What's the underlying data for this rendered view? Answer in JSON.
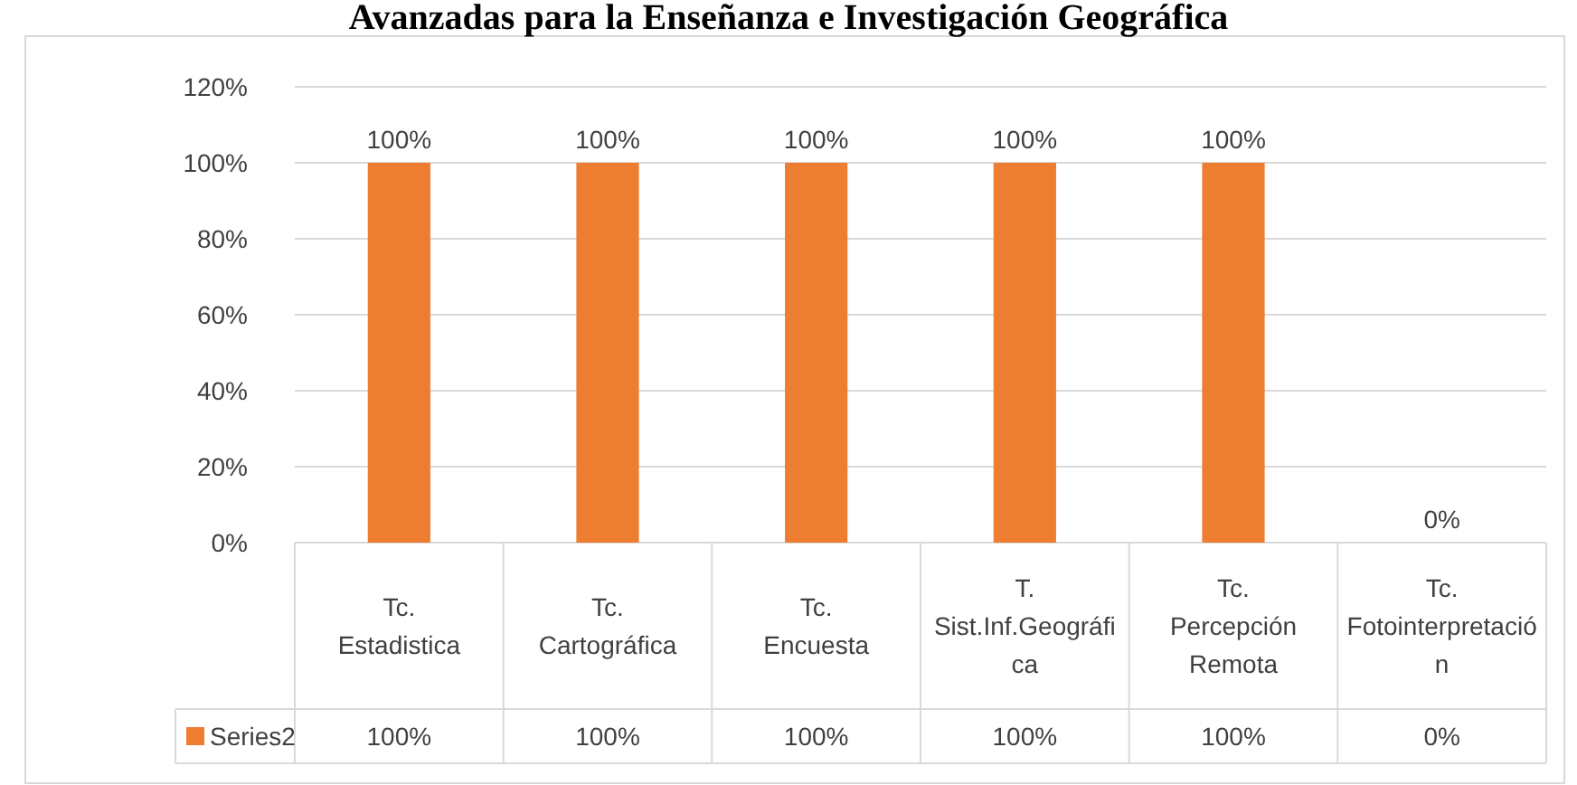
{
  "chart_data": {
    "type": "bar",
    "title": "Avanzadas para la Enseñanza e Investigación Geográfica",
    "categories": [
      "Tc. Estadistica",
      "Tc. Cartográfica",
      "Tc. Encuesta",
      "T. Sist.Inf.Geográfica",
      "Tc. Percepción Remota",
      "Tc. Fotointerpretación"
    ],
    "series": [
      {
        "name": "Series2",
        "color": "#ed7d31",
        "values": [
          100,
          100,
          100,
          100,
          100,
          0
        ],
        "value_labels": [
          "100%",
          "100%",
          "100%",
          "100%",
          "100%",
          "0%"
        ]
      }
    ],
    "ylim": [
      0,
      120
    ],
    "yticks": [
      {
        "value": 0,
        "label": "0%"
      },
      {
        "value": 20,
        "label": "20%"
      },
      {
        "value": 40,
        "label": "40%"
      },
      {
        "value": 60,
        "label": "60%"
      },
      {
        "value": 80,
        "label": "80%"
      },
      {
        "value": 100,
        "label": "100%"
      },
      {
        "value": 120,
        "label": "120%"
      }
    ],
    "grid": "y",
    "legend": "bottom"
  }
}
